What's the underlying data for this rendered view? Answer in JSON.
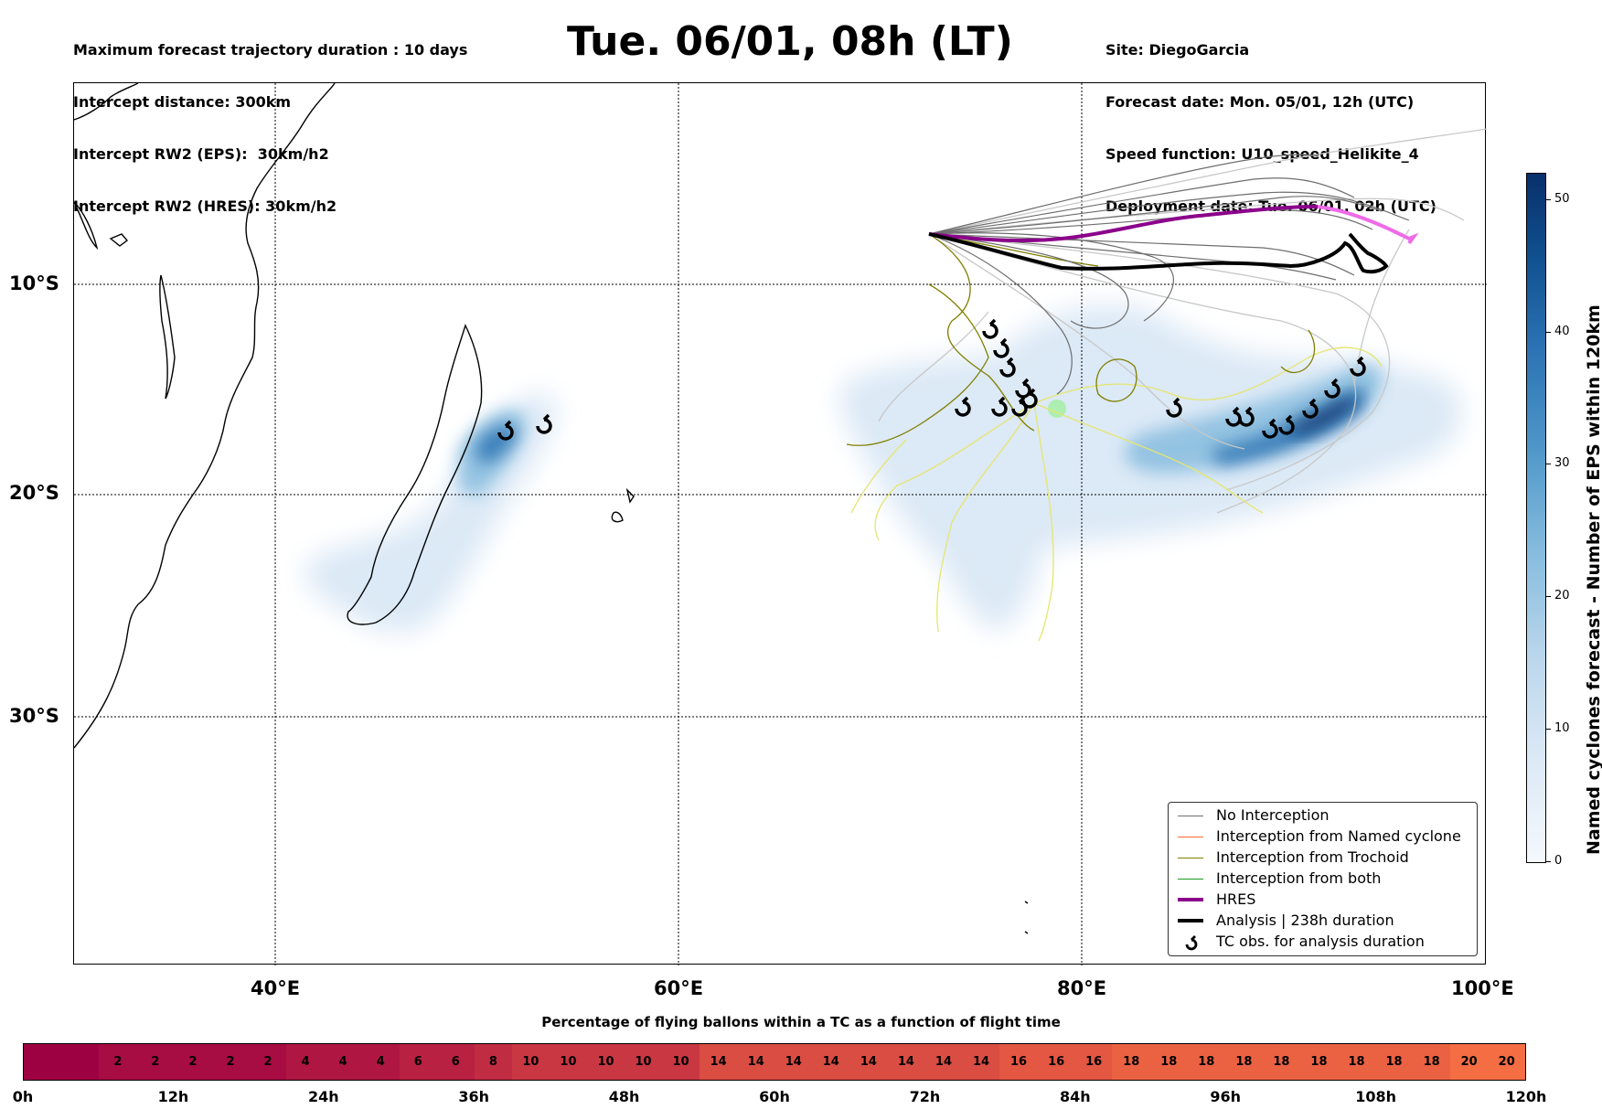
{
  "header": {
    "left_lines": [
      "Maximum forecast trajectory duration : 10 days",
      "Intercept distance: 300km",
      "Intercept RW2 (EPS):  30km/h2",
      "Intercept RW2 (HRES): 30km/h2"
    ],
    "title": "Tue. 06/01, 08h (LT)",
    "right_lines": [
      "Site: DiegoGarcia",
      "Forecast date: Mon. 05/01, 12h (UTC)",
      "Speed function: U10_speed_Helikite_4",
      "Deployment date: Tue. 06/01, 02h (UTC)"
    ]
  },
  "map": {
    "lat_labels": [
      "10°S",
      "20°S",
      "30°S"
    ],
    "lon_labels": [
      "40°E",
      "60°E",
      "80°E",
      "100°E"
    ],
    "colors": {
      "no_interception": "#6e6e6e",
      "named_cyclone": "#ff6a33",
      "trochoid": "#808000",
      "both": "#1a9a1a",
      "hres": "#8b008b",
      "analysis": "#000000",
      "ensemble_light": "#c8c8c8",
      "yellow_tracks": "#e6e66e"
    },
    "tc_obs_icon": "cyclone-icon"
  },
  "colorbar": {
    "title": "Named cyclones forecast - Number of EPS within 120km",
    "ticks": [
      "0",
      "10",
      "20",
      "30",
      "40",
      "50"
    ],
    "range": [
      0,
      52
    ]
  },
  "legend": {
    "items": [
      {
        "label": "No Interception",
        "color": "#6e6e6e"
      },
      {
        "label": "Interception from Named cyclone",
        "color": "#ff6a33"
      },
      {
        "label": "Interception from Trochoid",
        "color": "#808000"
      },
      {
        "label": "Interception from both",
        "color": "#1a9a1a"
      },
      {
        "label": "HRES",
        "color": "#8b008b"
      },
      {
        "label": "Analysis | 238h duration",
        "color": "#000000"
      },
      {
        "label": "TC obs. for analysis duration",
        "icon": "cyclone-icon"
      }
    ]
  },
  "percentage_bar": {
    "title": "Percentage of flying ballons within a TC as a function of flight time",
    "values": [
      "",
      "",
      "2",
      "2",
      "2",
      "2",
      "2",
      "4",
      "4",
      "4",
      "6",
      "6",
      "8",
      "10",
      "10",
      "10",
      "10",
      "10",
      "14",
      "14",
      "14",
      "14",
      "14",
      "14",
      "14",
      "14",
      "16",
      "16",
      "16",
      "18",
      "18",
      "18",
      "18",
      "18",
      "18",
      "18",
      "18",
      "18",
      "20",
      "20"
    ],
    "time_labels": [
      "0h",
      "12h",
      "24h",
      "36h",
      "48h",
      "60h",
      "72h",
      "84h",
      "96h",
      "108h",
      "120h"
    ]
  }
}
